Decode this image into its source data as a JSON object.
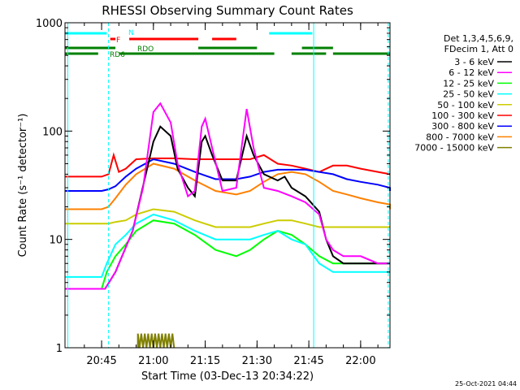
{
  "chart_data": {
    "type": "line",
    "title": "RHESSI Observing Summary Count Rates",
    "xlabel": "Start Time (03-Dec-13 20:34:22)",
    "ylabel": "Count Rate (s⁻¹ detector⁻¹)",
    "yscale": "log",
    "ylim": [
      1,
      1000
    ],
    "xlim_minutes": [
      34.4,
      93.5
    ],
    "y_ticks": [
      {
        "value": 1,
        "label": "1"
      },
      {
        "value": 10,
        "label": "10"
      },
      {
        "value": 100,
        "label": "100"
      },
      {
        "value": 1000,
        "label": "1000"
      }
    ],
    "x_ticks": [
      {
        "minute": 45,
        "label": "20:45"
      },
      {
        "minute": 60,
        "label": "21:00"
      },
      {
        "minute": 75,
        "label": "21:15"
      },
      {
        "minute": 90,
        "label": "21:30"
      },
      {
        "minute": 105,
        "label": "21:45"
      },
      {
        "minute": 120,
        "label": "22:00"
      }
    ],
    "legend_header": [
      "Det 1,3,4,5,6,9,",
      "FDecim 1, Att 0"
    ],
    "legend_position": "right",
    "series": [
      {
        "name": "3 - 6 keV",
        "color": "#000000",
        "points": [
          [
            34.4,
            3.5
          ],
          [
            46,
            3.5
          ],
          [
            49,
            5
          ],
          [
            54,
            12
          ],
          [
            60,
            80
          ],
          [
            62,
            110
          ],
          [
            65,
            90
          ],
          [
            67,
            45
          ],
          [
            70,
            30
          ],
          [
            72,
            25
          ],
          [
            74,
            80
          ],
          [
            75,
            90
          ],
          [
            77,
            60
          ],
          [
            80,
            35
          ],
          [
            84,
            35
          ],
          [
            87,
            90
          ],
          [
            89,
            60
          ],
          [
            92,
            40
          ],
          [
            96,
            35
          ],
          [
            98,
            38
          ],
          [
            100,
            30
          ],
          [
            104,
            25
          ],
          [
            108,
            18
          ],
          [
            110,
            10
          ],
          [
            112,
            7
          ],
          [
            115,
            6
          ],
          [
            120,
            6
          ],
          [
            125,
            6
          ],
          [
            130,
            6
          ],
          [
            135,
            6
          ],
          [
            140,
            6
          ]
        ]
      },
      {
        "name": "6 - 12 keV",
        "color": "#ff00ff",
        "points": [
          [
            34.4,
            3.5
          ],
          [
            46,
            3.5
          ],
          [
            49,
            5
          ],
          [
            54,
            12
          ],
          [
            57,
            30
          ],
          [
            60,
            150
          ],
          [
            62,
            180
          ],
          [
            65,
            120
          ],
          [
            67,
            50
          ],
          [
            70,
            25
          ],
          [
            72,
            28
          ],
          [
            74,
            110
          ],
          [
            75,
            130
          ],
          [
            77,
            70
          ],
          [
            80,
            28
          ],
          [
            84,
            30
          ],
          [
            87,
            160
          ],
          [
            89,
            70
          ],
          [
            92,
            30
          ],
          [
            96,
            28
          ],
          [
            100,
            25
          ],
          [
            104,
            22
          ],
          [
            108,
            17
          ],
          [
            110,
            10
          ],
          [
            112,
            8
          ],
          [
            115,
            7
          ],
          [
            120,
            7
          ],
          [
            125,
            6
          ],
          [
            130,
            6
          ],
          [
            135,
            6
          ],
          [
            140,
            6
          ]
        ]
      }
    ],
    "plot_series_extra": [
      {
        "name": "12 - 25 keV",
        "color": "#00ff00",
        "points": [
          [
            34.4,
            3.5
          ],
          [
            45,
            3.5
          ],
          [
            46.5,
            5
          ],
          [
            49,
            7
          ],
          [
            52,
            9
          ],
          [
            55,
            12
          ],
          [
            60,
            15
          ],
          [
            66,
            14
          ],
          [
            72,
            11
          ],
          [
            78,
            8
          ],
          [
            84,
            7
          ],
          [
            88,
            8
          ],
          [
            92,
            10
          ],
          [
            96,
            12
          ],
          [
            100,
            11
          ],
          [
            104,
            9
          ],
          [
            108,
            7
          ],
          [
            112,
            6
          ],
          [
            116,
            6
          ],
          [
            120,
            6
          ],
          [
            125,
            6
          ],
          [
            130,
            6
          ],
          [
            135,
            6
          ],
          [
            140,
            6
          ]
        ]
      },
      {
        "name": "25 - 50 keV",
        "color": "#00ffff",
        "points": [
          [
            34.4,
            4.5
          ],
          [
            45,
            4.5
          ],
          [
            46.5,
            6
          ],
          [
            49,
            9
          ],
          [
            52,
            11
          ],
          [
            55,
            14
          ],
          [
            60,
            17
          ],
          [
            66,
            15
          ],
          [
            72,
            12
          ],
          [
            78,
            10
          ],
          [
            84,
            10
          ],
          [
            88,
            10
          ],
          [
            92,
            11
          ],
          [
            96,
            12
          ],
          [
            100,
            10
          ],
          [
            104,
            9
          ],
          [
            108,
            6
          ],
          [
            112,
            5
          ],
          [
            116,
            5
          ],
          [
            120,
            5
          ],
          [
            125,
            5
          ],
          [
            130,
            5
          ],
          [
            135,
            5
          ],
          [
            140,
            5
          ]
        ]
      },
      {
        "name": "50 - 100 keV",
        "color": "#cccc00",
        "points": [
          [
            34.4,
            14
          ],
          [
            45,
            14
          ],
          [
            47,
            14
          ],
          [
            49,
            14.5
          ],
          [
            52,
            15
          ],
          [
            55,
            17
          ],
          [
            60,
            19
          ],
          [
            66,
            18
          ],
          [
            72,
            15
          ],
          [
            78,
            13
          ],
          [
            84,
            13
          ],
          [
            88,
            13
          ],
          [
            92,
            14
          ],
          [
            96,
            15
          ],
          [
            100,
            15
          ],
          [
            104,
            14
          ],
          [
            108,
            13
          ],
          [
            112,
            13
          ],
          [
            116,
            13
          ],
          [
            120,
            13
          ],
          [
            125,
            13
          ],
          [
            130,
            13
          ],
          [
            135,
            13
          ],
          [
            140,
            13
          ]
        ]
      },
      {
        "name": "100 - 300 keV",
        "color": "#ff0000",
        "points": [
          [
            34.4,
            38
          ],
          [
            45,
            38
          ],
          [
            47,
            40
          ],
          [
            48.5,
            60
          ],
          [
            50,
            42
          ],
          [
            52,
            45
          ],
          [
            55,
            55
          ],
          [
            60,
            56
          ],
          [
            66,
            56
          ],
          [
            72,
            55
          ],
          [
            78,
            55
          ],
          [
            84,
            55
          ],
          [
            88,
            55
          ],
          [
            92,
            60
          ],
          [
            96,
            50
          ],
          [
            100,
            48
          ],
          [
            104,
            45
          ],
          [
            108,
            42
          ],
          [
            112,
            48
          ],
          [
            116,
            48
          ],
          [
            120,
            45
          ],
          [
            125,
            42
          ],
          [
            130,
            40
          ],
          [
            135,
            40
          ],
          [
            140,
            40
          ]
        ]
      },
      {
        "name": "300 - 800 keV",
        "color": "#0000ff",
        "points": [
          [
            34.4,
            28
          ],
          [
            45,
            28
          ],
          [
            47,
            29
          ],
          [
            49,
            31
          ],
          [
            52,
            38
          ],
          [
            55,
            45
          ],
          [
            60,
            55
          ],
          [
            66,
            50
          ],
          [
            72,
            42
          ],
          [
            78,
            36
          ],
          [
            84,
            36
          ],
          [
            88,
            38
          ],
          [
            92,
            42
          ],
          [
            96,
            44
          ],
          [
            100,
            44
          ],
          [
            104,
            44
          ],
          [
            108,
            42
          ],
          [
            112,
            40
          ],
          [
            116,
            36
          ],
          [
            120,
            34
          ],
          [
            125,
            32
          ],
          [
            130,
            30
          ],
          [
            135,
            29
          ],
          [
            140,
            28
          ]
        ]
      },
      {
        "name": "800 - 7000 keV",
        "color": "#ff8000",
        "points": [
          [
            34.4,
            19
          ],
          [
            45,
            19
          ],
          [
            47,
            20
          ],
          [
            49,
            24
          ],
          [
            52,
            32
          ],
          [
            55,
            40
          ],
          [
            60,
            50
          ],
          [
            66,
            45
          ],
          [
            72,
            35
          ],
          [
            78,
            28
          ],
          [
            84,
            26
          ],
          [
            88,
            28
          ],
          [
            92,
            34
          ],
          [
            96,
            40
          ],
          [
            100,
            42
          ],
          [
            104,
            40
          ],
          [
            108,
            34
          ],
          [
            112,
            28
          ],
          [
            116,
            26
          ],
          [
            120,
            24
          ],
          [
            125,
            22
          ],
          [
            130,
            21
          ],
          [
            135,
            20
          ],
          [
            140,
            19
          ]
        ]
      },
      {
        "name": "7000 - 15000 keV",
        "color": "#808000",
        "points": [
          [
            55.5,
            1
          ],
          [
            55.5,
            1.35
          ],
          [
            56,
            1
          ],
          [
            56.5,
            1.35
          ],
          [
            57,
            1
          ],
          [
            57.5,
            1.35
          ],
          [
            58,
            1
          ],
          [
            58.5,
            1.35
          ],
          [
            59,
            1
          ],
          [
            59.5,
            1.35
          ],
          [
            60,
            1
          ],
          [
            60.5,
            1.35
          ],
          [
            61,
            1
          ],
          [
            61.5,
            1.35
          ],
          [
            62,
            1
          ],
          [
            62.5,
            1.35
          ],
          [
            63,
            1
          ],
          [
            63.5,
            1.35
          ],
          [
            64,
            1
          ],
          [
            64.5,
            1.35
          ],
          [
            65,
            1
          ],
          [
            65.5,
            1.35
          ],
          [
            66,
            1
          ]
        ]
      }
    ],
    "flag_bars": [
      {
        "label": "N",
        "color": "#00ffff",
        "level": 1,
        "segments": [
          [
            34.4,
            46.5
          ],
          [
            106,
            93.5
          ]
        ]
      },
      {
        "label": "F",
        "color": "#ff0000",
        "level": 2,
        "segments": [
          [
            47.5,
            49
          ],
          [
            53,
            73
          ],
          [
            77,
            84
          ]
        ]
      },
      {
        "label": "RDO",
        "color": "#008000",
        "level": 3,
        "segments": [
          [
            34.4,
            49
          ],
          [
            73,
            90
          ],
          [
            103,
            112
          ]
        ]
      },
      {
        "label": "RD6",
        "color": "#008000",
        "level": 4,
        "segments": [
          [
            34.4,
            44
          ],
          [
            50,
            95
          ],
          [
            100,
            110
          ],
          [
            112,
            140
          ]
        ]
      }
    ],
    "vertical_markers": [
      {
        "minute": 35.2,
        "style": "solid",
        "color": "#00ffff"
      },
      {
        "minute": 47.0,
        "style": "dashed",
        "color": "#00ffff"
      },
      {
        "minute": 106.4,
        "style": "solid",
        "color": "#00ffff"
      },
      {
        "minute": 128.0,
        "style": "dashed",
        "color": "#00ffff"
      }
    ],
    "footer_timestamp": "25-Oct-2021 04:44"
  }
}
